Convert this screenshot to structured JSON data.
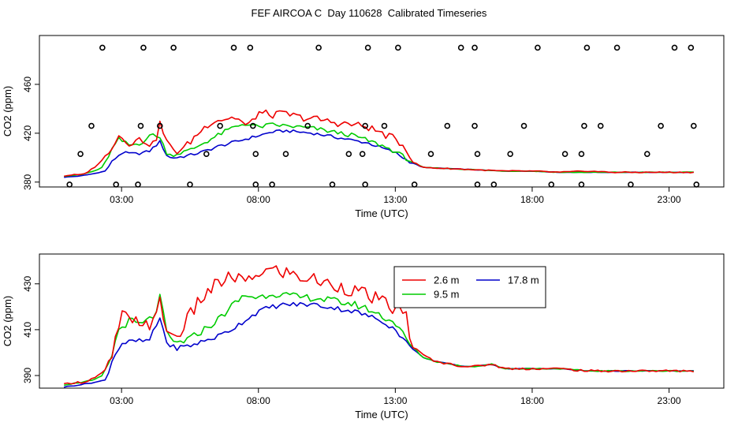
{
  "title": "FEF AIRCOA C  Day 110628  Calibrated Timeseries",
  "colors": {
    "2.6 m": "#ee0000",
    "9.5 m": "#00cc00",
    "17.8 m": "#0000cc",
    "axis": "#000000"
  },
  "chart_data": [
    {
      "type": "line",
      "panel": "top",
      "title": "FEF AIRCOA C  Day 110628  Calibrated Timeseries",
      "xlabel": "Time (UTC)",
      "ylabel": "CO2 (ppm)",
      "x_unit": "hours UTC",
      "xlim": [
        0,
        25
      ],
      "ylim": [
        376,
        500
      ],
      "x_ticks": [
        3,
        8,
        13,
        18,
        23
      ],
      "x_tick_labels": [
        "03:00",
        "08:00",
        "13:00",
        "18:00",
        "23:00"
      ],
      "y_ticks": [
        380,
        420,
        460
      ],
      "y_tick_labels": [
        "380",
        "420",
        "460"
      ],
      "series_anchors": {
        "2.6 m": [
          [
            0.9,
            385
          ],
          [
            1.2,
            386
          ],
          [
            1.6,
            386
          ],
          [
            2.0,
            392
          ],
          [
            2.3,
            398
          ],
          [
            2.6,
            408
          ],
          [
            2.9,
            418
          ],
          [
            3.3,
            412
          ],
          [
            3.7,
            415
          ],
          [
            4.2,
            410
          ],
          [
            4.4,
            428
          ],
          [
            4.7,
            410
          ],
          [
            5.0,
            405
          ],
          [
            5.3,
            408
          ],
          [
            5.8,
            420
          ],
          [
            6.3,
            430
          ],
          [
            6.8,
            432
          ],
          [
            7.2,
            433
          ],
          [
            7.6,
            425
          ],
          [
            8.0,
            437
          ],
          [
            8.5,
            435
          ],
          [
            9.0,
            436
          ],
          [
            9.5,
            433
          ],
          [
            10.0,
            432
          ],
          [
            10.5,
            430
          ],
          [
            11.0,
            428
          ],
          [
            11.5,
            427
          ],
          [
            12.0,
            425
          ],
          [
            12.5,
            420
          ],
          [
            13.0,
            415
          ],
          [
            13.4,
            408
          ],
          [
            13.6,
            397
          ],
          [
            14.0,
            392
          ],
          [
            15.0,
            391
          ],
          [
            16.0,
            390
          ],
          [
            17.0,
            389
          ],
          [
            18.0,
            389
          ],
          [
            19.0,
            388
          ],
          [
            20.0,
            389
          ],
          [
            21.0,
            388
          ],
          [
            22.0,
            388
          ],
          [
            23.0,
            388
          ],
          [
            24.0,
            388
          ]
        ],
        "9.5 m": [
          [
            0.9,
            385
          ],
          [
            1.5,
            386
          ],
          [
            2.0,
            389
          ],
          [
            2.3,
            392
          ],
          [
            2.6,
            405
          ],
          [
            2.9,
            415
          ],
          [
            3.3,
            410
          ],
          [
            3.7,
            412
          ],
          [
            4.2,
            420
          ],
          [
            4.4,
            416
          ],
          [
            4.7,
            402
          ],
          [
            5.0,
            403
          ],
          [
            5.5,
            406
          ],
          [
            6.0,
            412
          ],
          [
            6.5,
            418
          ],
          [
            7.0,
            424
          ],
          [
            7.5,
            428
          ],
          [
            8.0,
            425
          ],
          [
            8.5,
            427
          ],
          [
            9.0,
            426
          ],
          [
            9.5,
            425
          ],
          [
            10.0,
            424
          ],
          [
            10.5,
            422
          ],
          [
            11.0,
            420
          ],
          [
            11.5,
            418
          ],
          [
            12.0,
            414
          ],
          [
            12.5,
            410
          ],
          [
            13.0,
            405
          ],
          [
            13.5,
            398
          ],
          [
            14.0,
            392
          ],
          [
            15.0,
            391
          ],
          [
            16.0,
            390
          ],
          [
            17.0,
            389
          ],
          [
            18.0,
            389
          ],
          [
            19.0,
            388
          ],
          [
            20.0,
            388
          ],
          [
            21.0,
            388
          ],
          [
            22.0,
            388
          ],
          [
            23.0,
            388
          ],
          [
            24.0,
            388
          ]
        ],
        "17.8 m": [
          [
            0.9,
            384
          ],
          [
            1.5,
            385
          ],
          [
            2.0,
            387
          ],
          [
            2.4,
            389
          ],
          [
            2.7,
            398
          ],
          [
            3.0,
            404
          ],
          [
            3.5,
            403
          ],
          [
            4.0,
            405
          ],
          [
            4.4,
            413
          ],
          [
            4.7,
            400
          ],
          [
            5.0,
            400
          ],
          [
            5.5,
            402
          ],
          [
            6.0,
            405
          ],
          [
            6.5,
            409
          ],
          [
            7.0,
            412
          ],
          [
            7.5,
            415
          ],
          [
            8.0,
            418
          ],
          [
            8.5,
            421
          ],
          [
            9.0,
            422
          ],
          [
            9.5,
            421
          ],
          [
            10.0,
            420
          ],
          [
            10.5,
            418
          ],
          [
            11.0,
            416
          ],
          [
            11.5,
            414
          ],
          [
            12.0,
            412
          ],
          [
            12.5,
            408
          ],
          [
            13.0,
            404
          ],
          [
            13.5,
            397
          ],
          [
            14.0,
            392
          ],
          [
            15.0,
            391
          ],
          [
            16.0,
            390
          ],
          [
            17.0,
            389
          ],
          [
            18.0,
            389
          ],
          [
            19.0,
            388
          ],
          [
            20.0,
            388
          ],
          [
            21.0,
            388
          ],
          [
            22.0,
            388
          ],
          [
            23.0,
            388
          ],
          [
            24.0,
            388
          ]
        ]
      },
      "series_noise": {
        "2.6 m": 3.0,
        "9.5 m": 1.8,
        "17.8 m": 1.2
      },
      "points": [
        [
          1.1,
          378
        ],
        [
          1.5,
          403
        ],
        [
          1.9,
          426
        ],
        [
          2.3,
          490
        ],
        [
          2.8,
          378
        ],
        [
          3.6,
          378
        ],
        [
          3.7,
          426
        ],
        [
          3.8,
          490
        ],
        [
          4.4,
          426
        ],
        [
          4.9,
          490
        ],
        [
          5.5,
          378
        ],
        [
          6.1,
          403
        ],
        [
          6.6,
          426
        ],
        [
          7.1,
          490
        ],
        [
          7.7,
          490
        ],
        [
          7.8,
          426
        ],
        [
          7.9,
          378
        ],
        [
          7.9,
          403
        ],
        [
          8.5,
          378
        ],
        [
          9.0,
          403
        ],
        [
          9.8,
          426
        ],
        [
          10.2,
          490
        ],
        [
          10.7,
          378
        ],
        [
          11.3,
          403
        ],
        [
          11.8,
          403
        ],
        [
          11.9,
          378
        ],
        [
          11.9,
          426
        ],
        [
          12.0,
          490
        ],
        [
          12.6,
          426
        ],
        [
          13.1,
          490
        ],
        [
          13.7,
          378
        ],
        [
          14.3,
          403
        ],
        [
          14.9,
          426
        ],
        [
          15.4,
          490
        ],
        [
          15.9,
          490
        ],
        [
          15.9,
          426
        ],
        [
          16.0,
          378
        ],
        [
          16.0,
          403
        ],
        [
          16.6,
          378
        ],
        [
          17.2,
          403
        ],
        [
          17.7,
          426
        ],
        [
          18.2,
          490
        ],
        [
          18.7,
          378
        ],
        [
          19.2,
          403
        ],
        [
          19.8,
          378
        ],
        [
          19.8,
          403
        ],
        [
          19.9,
          426
        ],
        [
          20.0,
          490
        ],
        [
          20.5,
          426
        ],
        [
          21.1,
          490
        ],
        [
          21.6,
          378
        ],
        [
          22.2,
          403
        ],
        [
          22.7,
          426
        ],
        [
          23.2,
          490
        ],
        [
          23.8,
          490
        ],
        [
          23.9,
          426
        ],
        [
          24.0,
          378
        ]
      ]
    },
    {
      "type": "line",
      "panel": "bottom",
      "xlabel": "Time (UTC)",
      "ylabel": "CO2 (ppm)",
      "x_unit": "hours UTC",
      "xlim": [
        0,
        25
      ],
      "ylim": [
        384.5,
        443
      ],
      "x_ticks": [
        3,
        8,
        13,
        18,
        23
      ],
      "x_tick_labels": [
        "03:00",
        "08:00",
        "13:00",
        "18:00",
        "23:00"
      ],
      "y_ticks": [
        390,
        410,
        430
      ],
      "y_tick_labels": [
        "390",
        "410",
        "430"
      ],
      "legend": {
        "position": "top-right",
        "entries": [
          "2.6 m",
          "17.8 m",
          "9.5 m"
        ]
      },
      "series_anchors": {
        "2.6 m": [
          [
            0.9,
            386
          ],
          [
            1.2,
            387
          ],
          [
            1.6,
            387
          ],
          [
            2.0,
            389
          ],
          [
            2.3,
            391
          ],
          [
            2.6,
            395
          ],
          [
            2.9,
            412
          ],
          [
            3.1,
            418
          ],
          [
            3.3,
            412
          ],
          [
            3.7,
            414
          ],
          [
            4.2,
            412
          ],
          [
            4.4,
            422
          ],
          [
            4.7,
            408
          ],
          [
            5.0,
            407
          ],
          [
            5.3,
            412
          ],
          [
            5.8,
            422
          ],
          [
            6.3,
            428
          ],
          [
            6.8,
            432
          ],
          [
            7.2,
            433
          ],
          [
            7.6,
            430
          ],
          [
            8.0,
            435
          ],
          [
            8.5,
            436
          ],
          [
            9.0,
            435
          ],
          [
            9.5,
            433
          ],
          [
            10.0,
            432
          ],
          [
            10.5,
            430
          ],
          [
            11.0,
            429
          ],
          [
            11.5,
            427
          ],
          [
            12.0,
            425
          ],
          [
            12.5,
            422
          ],
          [
            13.0,
            419
          ],
          [
            13.4,
            416
          ],
          [
            13.6,
            403
          ],
          [
            14.0,
            399
          ],
          [
            14.5,
            396
          ],
          [
            15.0,
            395
          ],
          [
            15.5,
            394
          ],
          [
            16.0,
            394
          ],
          [
            16.5,
            395
          ],
          [
            17.0,
            393
          ],
          [
            18.0,
            393
          ],
          [
            19.0,
            393
          ],
          [
            20.0,
            392
          ],
          [
            21.0,
            392
          ],
          [
            22.0,
            392
          ],
          [
            23.0,
            392
          ],
          [
            24.0,
            392
          ]
        ],
        "9.5 m": [
          [
            0.9,
            386
          ],
          [
            1.5,
            387
          ],
          [
            2.0,
            388
          ],
          [
            2.3,
            390
          ],
          [
            2.6,
            397
          ],
          [
            2.9,
            410
          ],
          [
            3.3,
            414
          ],
          [
            3.7,
            412
          ],
          [
            4.2,
            416
          ],
          [
            4.4,
            424
          ],
          [
            4.7,
            406
          ],
          [
            5.0,
            404
          ],
          [
            5.5,
            406
          ],
          [
            6.0,
            410
          ],
          [
            6.5,
            414
          ],
          [
            7.0,
            420
          ],
          [
            7.5,
            425
          ],
          [
            8.0,
            424
          ],
          [
            8.5,
            426
          ],
          [
            9.0,
            425
          ],
          [
            9.5,
            424
          ],
          [
            10.0,
            424
          ],
          [
            10.5,
            423
          ],
          [
            11.0,
            422
          ],
          [
            11.5,
            421
          ],
          [
            12.0,
            419
          ],
          [
            12.5,
            416
          ],
          [
            13.0,
            413
          ],
          [
            13.5,
            404
          ],
          [
            14.0,
            398
          ],
          [
            14.5,
            396
          ],
          [
            15.0,
            395
          ],
          [
            15.5,
            394
          ],
          [
            16.0,
            394
          ],
          [
            16.5,
            395
          ],
          [
            17.0,
            393
          ],
          [
            18.0,
            393
          ],
          [
            19.0,
            393
          ],
          [
            20.0,
            392
          ],
          [
            21.0,
            392
          ],
          [
            22.0,
            392
          ],
          [
            23.0,
            392
          ],
          [
            24.0,
            392
          ]
        ],
        "17.8 m": [
          [
            0.9,
            385
          ],
          [
            1.5,
            386
          ],
          [
            2.0,
            387
          ],
          [
            2.4,
            388
          ],
          [
            2.7,
            398
          ],
          [
            3.0,
            404
          ],
          [
            3.5,
            405
          ],
          [
            4.0,
            405
          ],
          [
            4.4,
            415
          ],
          [
            4.7,
            403
          ],
          [
            5.0,
            402
          ],
          [
            5.5,
            403
          ],
          [
            6.0,
            405
          ],
          [
            6.5,
            407
          ],
          [
            7.0,
            410
          ],
          [
            7.5,
            414
          ],
          [
            8.0,
            418
          ],
          [
            8.5,
            420
          ],
          [
            9.0,
            421
          ],
          [
            9.5,
            421
          ],
          [
            10.0,
            421
          ],
          [
            10.5,
            420
          ],
          [
            11.0,
            419
          ],
          [
            11.5,
            418
          ],
          [
            12.0,
            416
          ],
          [
            12.5,
            414
          ],
          [
            13.0,
            410
          ],
          [
            13.5,
            403
          ],
          [
            14.0,
            398
          ],
          [
            14.5,
            396
          ],
          [
            15.0,
            395
          ],
          [
            15.5,
            394
          ],
          [
            16.0,
            394
          ],
          [
            16.5,
            395
          ],
          [
            17.0,
            393
          ],
          [
            18.0,
            393
          ],
          [
            19.0,
            393
          ],
          [
            20.0,
            392
          ],
          [
            21.0,
            392
          ],
          [
            22.0,
            392
          ],
          [
            23.0,
            392
          ],
          [
            24.0,
            392
          ]
        ]
      },
      "series_noise": {
        "2.6 m": 3.2,
        "9.5 m": 1.6,
        "17.8 m": 1.1
      }
    }
  ]
}
